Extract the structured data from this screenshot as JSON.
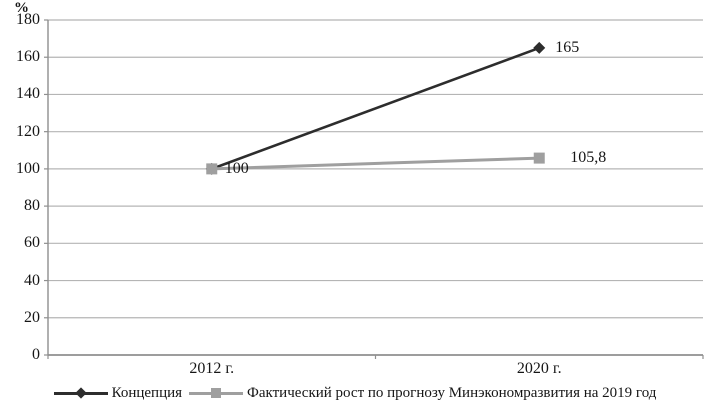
{
  "chart_data": {
    "type": "line",
    "title": "",
    "ylabel": "%",
    "xlabel": "",
    "categories": [
      "2012 г.",
      "2020 г."
    ],
    "series": [
      {
        "name": "Концепция",
        "values": [
          100,
          165
        ],
        "point_labels": [
          "100",
          "165"
        ],
        "color": "#2d2d2d",
        "marker": "diamond"
      },
      {
        "name": "Фактический рост по прогнозу Минэкономразвития на 2019 год",
        "values": [
          100,
          105.8
        ],
        "point_labels": [
          "",
          "105,8"
        ],
        "color": "#9f9f9f",
        "marker": "square"
      }
    ],
    "ylim": [
      0,
      180
    ],
    "yticks": [
      0,
      20,
      40,
      60,
      80,
      100,
      120,
      140,
      160,
      180
    ],
    "grid": true,
    "legend_position": "bottom"
  },
  "colors": {
    "background": "#ffffff",
    "grid": "#b5b5b5",
    "axis": "#8f8f8f",
    "text": "#161616"
  }
}
